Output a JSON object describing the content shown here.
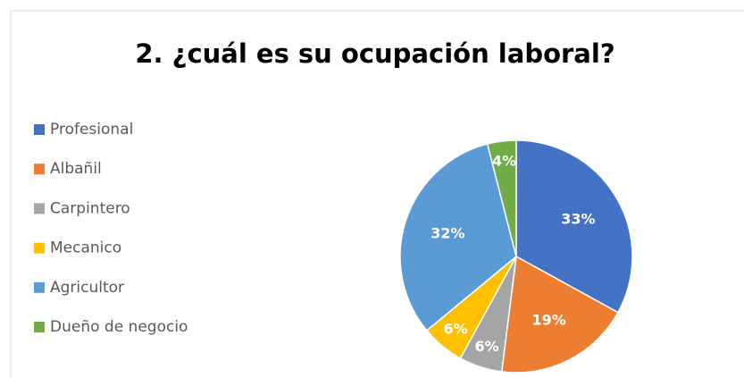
{
  "chart_data": {
    "type": "pie",
    "title": "2. ¿cuál es su ocupación laboral?",
    "categories": [
      "Profesional",
      "Albañil",
      "Carpintero",
      "Mecanico",
      "Agricultor",
      "Dueño de negocio"
    ],
    "values": [
      33,
      19,
      6,
      6,
      32,
      4
    ],
    "value_labels": [
      "33%",
      "19%",
      "6%",
      "6%",
      "32%",
      "4%"
    ],
    "colors": [
      "#4472c4",
      "#ed7d31",
      "#a5a5a5",
      "#ffc000",
      "#5b9bd5",
      "#70ad47"
    ],
    "legend": "left"
  }
}
